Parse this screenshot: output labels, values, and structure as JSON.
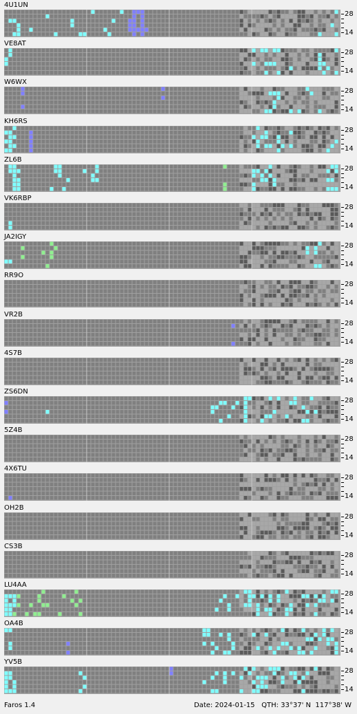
{
  "beacons": [
    {
      "call": "4U1UN",
      "band_top": "28",
      "band_bottom": "14",
      "activity": [
        [
          0,
          "c",
          33,
          23,
          0.55,
          2
        ],
        [
          30,
          "b",
          5,
          30,
          0.5,
          2
        ],
        [
          75,
          "c",
          35,
          24,
          0.6,
          2
        ]
      ]
    },
    {
      "call": "VE8AT",
      "band_top": "28",
      "band_bottom": "14",
      "activity": [
        [
          0,
          "c",
          2,
          6,
          0.55,
          2
        ],
        [
          60,
          "c",
          10,
          20,
          0.5,
          1
        ],
        [
          76,
          "c",
          20,
          30,
          0.6,
          2
        ]
      ]
    },
    {
      "call": "W6WX",
      "band_top": "28",
      "band_bottom": "14",
      "activity": [
        [
          4,
          "b",
          1,
          4,
          0.4,
          1
        ],
        [
          38,
          "b",
          1,
          4,
          0.4,
          1
        ],
        [
          63,
          "c",
          14,
          16,
          0.55,
          2
        ],
        [
          82,
          "b",
          3,
          10,
          0.4,
          1
        ]
      ]
    },
    {
      "call": "KH6RS",
      "band_top": "28",
      "band_bottom": "14",
      "activity": [
        [
          0,
          "c",
          3,
          20,
          0.5,
          2
        ],
        [
          6,
          "b",
          1,
          5,
          0.5,
          1
        ],
        [
          60,
          "c",
          10,
          20,
          0.6,
          2
        ],
        [
          76,
          "c",
          28,
          30,
          0.6,
          2
        ]
      ]
    },
    {
      "call": "ZL6B",
      "band_top": "28",
      "band_bottom": "14",
      "activity": [
        [
          1,
          "c",
          3,
          22,
          0.5,
          2
        ],
        [
          10,
          "c",
          13,
          20,
          0.6,
          2
        ],
        [
          52,
          "g",
          2,
          6,
          0.4,
          1
        ],
        [
          60,
          "c",
          6,
          20,
          0.5,
          2
        ],
        [
          78,
          "c",
          5,
          25,
          0.5,
          2
        ]
      ]
    },
    {
      "call": "VK6RBP",
      "band_top": "28",
      "band_bottom": "14",
      "activity": [
        [
          0,
          "c",
          2,
          3,
          0.4,
          1
        ]
      ]
    },
    {
      "call": "JA2IGY",
      "band_top": "28",
      "band_bottom": "14",
      "activity": [
        [
          0,
          "c",
          2,
          6,
          0.5,
          1
        ],
        [
          4,
          "g",
          9,
          10,
          0.4,
          1
        ],
        [
          73,
          "c",
          4,
          10,
          0.6,
          1
        ]
      ]
    },
    {
      "call": "RR9O",
      "band_top": "28",
      "band_bottom": "14",
      "activity": []
    },
    {
      "call": "VR2B",
      "band_top": "28",
      "band_bottom": "14",
      "activity": [
        [
          55,
          "b",
          1,
          2,
          0.4,
          1
        ]
      ]
    },
    {
      "call": "4S7B",
      "band_top": "28",
      "band_bottom": "14",
      "activity": []
    },
    {
      "call": "ZS6DN",
      "band_top": "28",
      "band_bottom": "14",
      "activity": [
        [
          0,
          "b",
          1,
          2,
          0.4,
          1
        ],
        [
          10,
          "c",
          1,
          2,
          0.4,
          1
        ],
        [
          50,
          "c",
          10,
          20,
          0.6,
          2
        ],
        [
          62,
          "c",
          15,
          20,
          0.55,
          2
        ]
      ]
    },
    {
      "call": "5Z4B",
      "band_top": "28",
      "band_bottom": "14",
      "activity": []
    },
    {
      "call": "4X6TU",
      "band_top": "28",
      "band_bottom": "14",
      "activity": [
        [
          1,
          "b",
          1,
          2,
          0.4,
          1
        ]
      ]
    },
    {
      "call": "OH2B",
      "band_top": "28",
      "band_bottom": "14",
      "activity": []
    },
    {
      "call": "CS3B",
      "band_top": "28",
      "band_bottom": "14",
      "activity": []
    },
    {
      "call": "LU4AA",
      "band_top": "28",
      "band_bottom": "14",
      "activity": [
        [
          0,
          "g",
          20,
          26,
          0.6,
          2
        ],
        [
          0,
          "c",
          3,
          20,
          0.55,
          2
        ],
        [
          50,
          "c",
          14,
          16,
          0.6,
          2
        ],
        [
          60,
          "c",
          10,
          20,
          0.6,
          2
        ],
        [
          72,
          "c",
          12,
          24,
          0.6,
          2
        ]
      ]
    },
    {
      "call": "OA4B",
      "band_top": "28",
      "band_bottom": "14",
      "activity": [
        [
          0,
          "c",
          2,
          4,
          0.5,
          1
        ],
        [
          15,
          "b",
          1,
          2,
          0.5,
          1
        ],
        [
          48,
          "c",
          8,
          22,
          0.55,
          2
        ],
        [
          60,
          "c",
          14,
          20,
          0.55,
          2
        ],
        [
          73,
          "c",
          10,
          25,
          0.6,
          2
        ]
      ]
    },
    {
      "call": "YV5B",
      "band_top": "28",
      "band_bottom": "14",
      "activity": [
        [
          0,
          "c",
          3,
          20,
          0.4,
          2
        ],
        [
          18,
          "c",
          2,
          8,
          0.4,
          1
        ],
        [
          40,
          "b",
          1,
          3,
          0.4,
          1
        ],
        [
          48,
          "c",
          16,
          22,
          0.6,
          2
        ],
        [
          60,
          "c",
          18,
          25,
          0.6,
          2
        ]
      ]
    }
  ],
  "colors": {
    "cell_empty": "#808080",
    "cell_dark": "#5a5a5a",
    "cell_night": "#a8a8a8",
    "cyan": "#80ffff",
    "green": "#90ee90",
    "blue": "#8080ff"
  },
  "status": {
    "app_name": "Faros 1.4",
    "date": "Date: 2024-01-15",
    "qth": "QTH: 33°37' N  117°38' W"
  }
}
